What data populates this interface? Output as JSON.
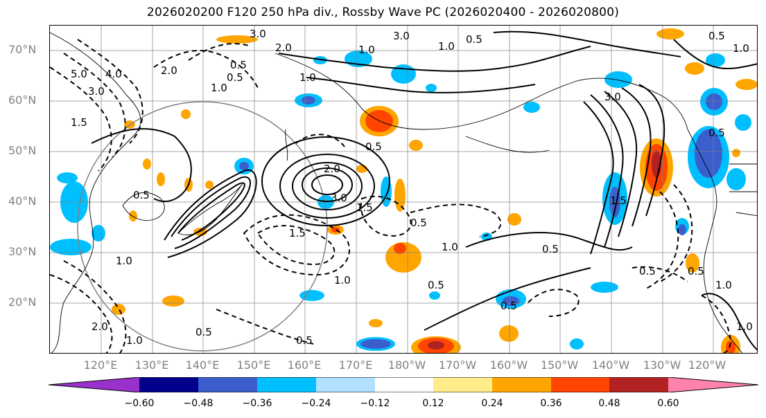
{
  "title": "2026020200 F120 250 hPa div., Rossby Wave PC (2026020400 - 2026020800)",
  "map": {
    "lat_labels": [
      "70°N",
      "60°N",
      "50°N",
      "40°N",
      "30°N",
      "20°N"
    ],
    "lon_labels": [
      "120°E",
      "130°E",
      "140°E",
      "150°E",
      "160°E",
      "170°E",
      "180°W",
      "170°W",
      "160°W",
      "150°W",
      "140°W",
      "130°W",
      "120°W"
    ],
    "contour_labels": [
      "3.0",
      "2.0",
      "0.5",
      "1.0",
      "3.0",
      "1.0",
      "0.5",
      "5.0",
      "4.0",
      "3.0",
      "1.5",
      "2.0",
      "1.0",
      "0.5",
      "1.0",
      "3.0",
      "2.0",
      "1.5",
      "1.5",
      "0.5",
      "1.0",
      "0.5",
      "1.0",
      "1.5",
      "0.5",
      "3.0",
      "0.5",
      "0.5",
      "1.0",
      "2.0",
      "1.0",
      "0.5",
      "0.5",
      "0.5",
      "1.0",
      "0.5",
      "0.5",
      "1.0",
      "0.5",
      "1.0",
      "0.5"
    ],
    "colors": {
      "land_outline": "#000000",
      "grid": "#808080",
      "contour": "#000000"
    }
  },
  "colorbar": {
    "ticks": [
      "−0.60",
      "−0.48",
      "−0.36",
      "−0.24",
      "−0.12",
      "0.12",
      "0.24",
      "0.36",
      "0.48",
      "0.60"
    ],
    "colors": [
      "#9932cc",
      "#00008b",
      "#3a5fcd",
      "#00bfff",
      "#b0e2ff",
      "#ffffff",
      "#ffec8b",
      "#ffa500",
      "#ff4500",
      "#b22222",
      "#ff82ab"
    ]
  }
}
